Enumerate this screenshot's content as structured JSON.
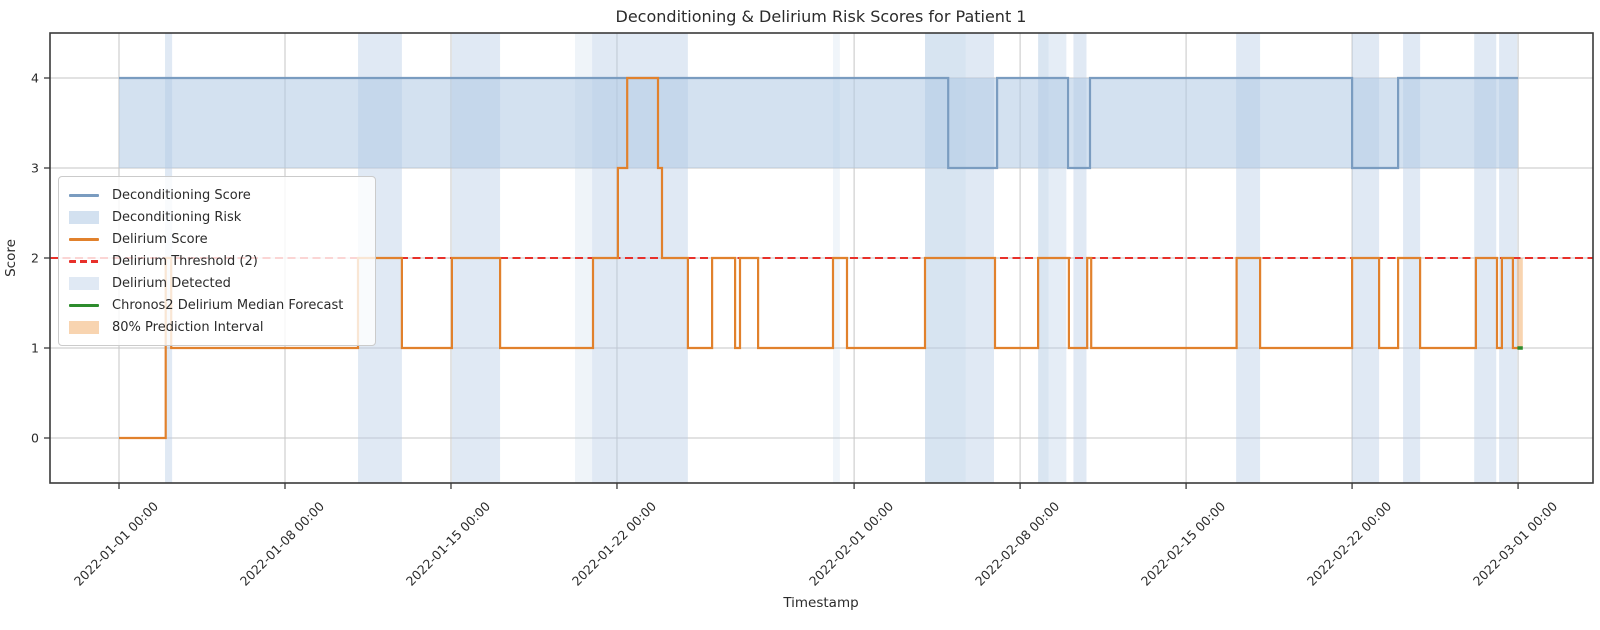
{
  "figure": {
    "title": "Deconditioning & Delirium Risk Scores for Patient 1",
    "xlabel": "Timestamp",
    "ylabel": "Score"
  },
  "colors": {
    "deconditioning_line": "#7a9cc0",
    "deconditioning_band": "#aec8e3",
    "delirium_line": "#e1812c",
    "threshold_line": "#e8302a",
    "detected_band": "#b4cbe4",
    "forecast_line": "#2d8c2d",
    "prediction_band": "#f0a050",
    "grid": "#c6c6c6",
    "spine": "#3a3a3a",
    "tick_text": "#2b2b2b"
  },
  "legend": {
    "entries": [
      {
        "label": "Deconditioning Score",
        "type": "line",
        "color": "#7a9cc0",
        "opacity": 1
      },
      {
        "label": "Deconditioning Risk",
        "type": "patch",
        "color": "#aec8e3",
        "opacity": 0.55
      },
      {
        "label": "Delirium Score",
        "type": "line",
        "color": "#e1812c",
        "opacity": 1
      },
      {
        "label": "Delirium Threshold (2)",
        "type": "dashed",
        "color": "#e8302a",
        "opacity": 1
      },
      {
        "label": "Delirium Detected",
        "type": "patch",
        "color": "#b4cbe4",
        "opacity": 0.42
      },
      {
        "label": "Chronos2 Delirium Median Forecast",
        "type": "line",
        "color": "#2d8c2d",
        "opacity": 1
      },
      {
        "label": "80% Prediction Interval",
        "type": "patch",
        "color": "#f0a050",
        "opacity": 0.45
      }
    ]
  },
  "axes": {
    "x_unit": "days since 2022-01-01 00:00",
    "xlim": [
      -2.91,
      62.16
    ],
    "ylim": [
      -0.5,
      4.5
    ],
    "x_ticks": [
      {
        "day": 0,
        "label": "2022-01-01 00:00"
      },
      {
        "day": 7,
        "label": "2022-01-08 00:00"
      },
      {
        "day": 14,
        "label": "2022-01-15 00:00"
      },
      {
        "day": 21,
        "label": "2022-01-22 00:00"
      },
      {
        "day": 31,
        "label": "2022-02-01 00:00"
      },
      {
        "day": 38,
        "label": "2022-02-08 00:00"
      },
      {
        "day": 45,
        "label": "2022-02-15 00:00"
      },
      {
        "day": 52,
        "label": "2022-02-22 00:00"
      },
      {
        "day": 59,
        "label": "2022-03-01 00:00"
      }
    ],
    "y_ticks": [
      {
        "value": 0,
        "label": "0"
      },
      {
        "value": 1,
        "label": "1"
      },
      {
        "value": 2,
        "label": "2"
      },
      {
        "value": 3,
        "label": "3"
      },
      {
        "value": 4,
        "label": "4"
      }
    ]
  },
  "chart_data": {
    "type": "line",
    "style": "step-post",
    "series": [
      {
        "name": "Deconditioning Score",
        "color": "#7a9cc0",
        "width": 2.2,
        "steps": [
          [
            0,
            4
          ],
          [
            34.97,
            3
          ],
          [
            37.03,
            4
          ],
          [
            40.02,
            3
          ],
          [
            40.95,
            4
          ],
          [
            52.0,
            3
          ],
          [
            53.94,
            4
          ]
        ],
        "end": 59.0
      },
      {
        "name": "Delirium Score",
        "color": "#e1812c",
        "width": 2.2,
        "steps": [
          [
            0,
            0
          ],
          [
            1.97,
            2
          ],
          [
            2.2,
            1
          ],
          [
            10.08,
            2
          ],
          [
            11.93,
            1
          ],
          [
            14.04,
            2
          ],
          [
            16.07,
            1
          ],
          [
            19.99,
            2
          ],
          [
            21.04,
            3
          ],
          [
            21.43,
            4
          ],
          [
            22.73,
            3
          ],
          [
            22.9,
            2
          ],
          [
            23.99,
            1
          ],
          [
            25.01,
            2
          ],
          [
            25.98,
            1
          ],
          [
            26.19,
            2
          ],
          [
            26.95,
            1
          ],
          [
            30.11,
            2
          ],
          [
            30.7,
            1
          ],
          [
            33.99,
            2
          ],
          [
            36.94,
            1
          ],
          [
            38.76,
            2
          ],
          [
            40.06,
            1
          ],
          [
            40.83,
            2
          ],
          [
            41.0,
            1
          ],
          [
            47.13,
            2
          ],
          [
            48.12,
            1
          ],
          [
            52.0,
            2
          ],
          [
            53.14,
            1
          ],
          [
            53.94,
            2
          ],
          [
            54.87,
            1
          ],
          [
            57.22,
            2
          ],
          [
            58.11,
            1
          ],
          [
            58.32,
            2
          ],
          [
            58.78,
            1
          ]
        ],
        "end": 59.0
      },
      {
        "name": "Chronos2 Delirium Median Forecast",
        "color": "#2d8c2d",
        "width": 3.5,
        "steps": [
          [
            58.97,
            1
          ]
        ],
        "end": 59.2
      }
    ],
    "deconditioning_risk_band": {
      "x": [
        0,
        59
      ],
      "y": [
        3,
        4
      ],
      "color": "#aec8e3",
      "opacity": 0.55
    },
    "delirium_threshold": {
      "value": 2,
      "color": "#e8302a",
      "dash": [
        8,
        4.5
      ],
      "width": 2
    },
    "delirium_detected_bands": [
      {
        "start": 1.94,
        "end": 2.24,
        "opacity": 0.42
      },
      {
        "start": 10.08,
        "end": 11.93,
        "opacity": 0.42
      },
      {
        "start": 14.04,
        "end": 16.07,
        "opacity": 0.42
      },
      {
        "start": 19.23,
        "end": 19.95,
        "opacity": 0.22
      },
      {
        "start": 19.95,
        "end": 23.99,
        "opacity": 0.42
      },
      {
        "start": 30.11,
        "end": 30.4,
        "opacity": 0.2
      },
      {
        "start": 33.99,
        "end": 36.9,
        "opacity": 0.42
      },
      {
        "start": 33.99,
        "end": 35.7,
        "opacity": 0.18
      },
      {
        "start": 38.76,
        "end": 39.2,
        "opacity": 0.5
      },
      {
        "start": 39.2,
        "end": 39.95,
        "opacity": 0.35
      },
      {
        "start": 40.25,
        "end": 40.8,
        "opacity": 0.42
      },
      {
        "start": 47.11,
        "end": 48.12,
        "opacity": 0.42
      },
      {
        "start": 52.0,
        "end": 53.14,
        "opacity": 0.42
      },
      {
        "start": 54.15,
        "end": 54.87,
        "opacity": 0.42
      },
      {
        "start": 57.15,
        "end": 58.08,
        "opacity": 0.42
      },
      {
        "start": 58.2,
        "end": 58.96,
        "opacity": 0.42
      }
    ],
    "prediction_interval": {
      "x": [
        58.95,
        59.2
      ],
      "y": [
        1,
        2
      ],
      "color": "#f0a050",
      "opacity": 0.45
    }
  }
}
